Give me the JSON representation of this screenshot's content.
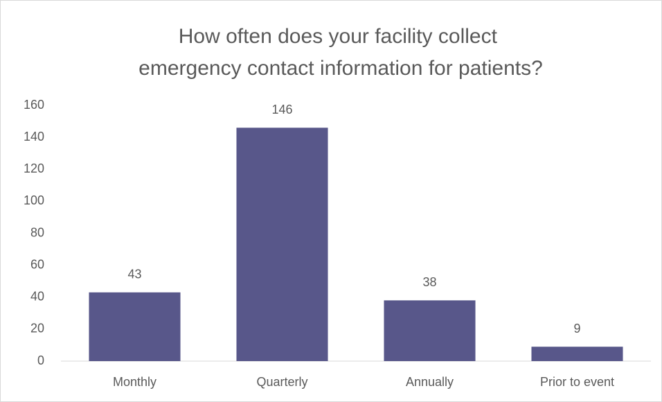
{
  "chart_data": {
    "type": "bar",
    "title": "How often does your facility collect emergency contact information for patients?",
    "categories": [
      "Monthly",
      "Quarterly",
      "Annually",
      "Prior to event"
    ],
    "values": [
      43,
      146,
      38,
      9
    ],
    "color": "#58578a",
    "ylim": [
      0,
      160
    ],
    "yticks": [
      0,
      20,
      40,
      60,
      80,
      100,
      120,
      140,
      160
    ],
    "grid": false
  }
}
